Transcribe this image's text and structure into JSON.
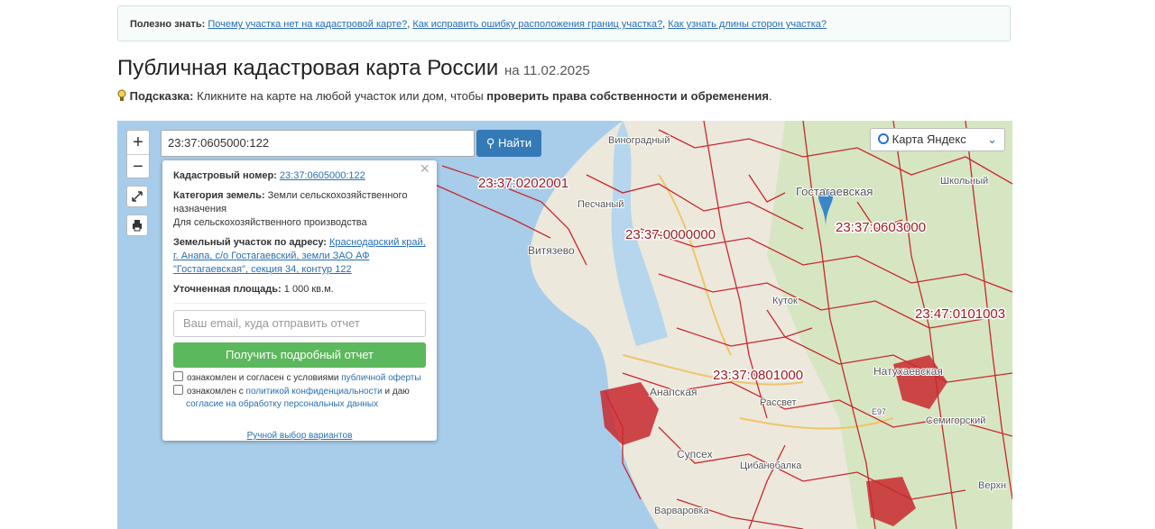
{
  "info": {
    "label": "Полезно знать:",
    "links": [
      "Почему участка нет на кадастровой карте?",
      "Как исправить ошибку расположения границ участка?",
      "Как узнать длины сторон участка?"
    ],
    "separator": ","
  },
  "header": {
    "title": "Публичная кадастровая карта России",
    "date": "на 11.02.2025"
  },
  "hint": {
    "label": "Подсказка:",
    "text": "Кликните на карте на любой участок или дом, чтобы",
    "bold": "проверить права собственности и обременения",
    "end": "."
  },
  "search": {
    "value": "23:37:0605000:122",
    "button": "Найти"
  },
  "zoom": {
    "in": "+",
    "out": "−"
  },
  "layer": "Карта Яндекс",
  "popup": {
    "number_label": "Кадастровый номер:",
    "number": "23:37:0605000:122",
    "category_label": "Категория земель:",
    "category": "Земли сельскохозяйственного назначения",
    "usage": "Для сельскохозяйственного производства",
    "address_label": "Земельный участок по адресу:",
    "address": "Краснодарский край, г. Анапа, с/о Гостагаевский, земли ЗАО АФ \"Гостагаевская\", секция 34, контур 122",
    "area_label": "Уточненная площадь:",
    "area": "1 000 кв.м.",
    "email_placeholder": "Ваш email, куда отправить отчет",
    "report_button": "Получить подробный отчет",
    "check1": {
      "text": "ознакомлен и согласен с условиями",
      "link": "публичной оферты"
    },
    "check2": {
      "text": "ознакомлен с",
      "link": "политикой конфиденциальности",
      "mid": "и даю",
      "link2": "согласие на обработку персональных данных"
    },
    "manual": "Ручной выбор вариантов"
  },
  "map": {
    "quarters": [
      "23:37:0202001",
      "23:37:0000000",
      "23:37:0603000",
      "23:47:0101003",
      "23:37:0801000"
    ],
    "places": [
      "Виноградный",
      "Гостагаевская",
      "Песчаный",
      "Витязево",
      "Куток",
      "Натухаевская",
      "Анапская",
      "Рассвет",
      "Супсех",
      "Семигорский",
      "Школьный",
      "Верхн",
      "Варваровка",
      "Цибанобалка",
      "E97"
    ]
  }
}
